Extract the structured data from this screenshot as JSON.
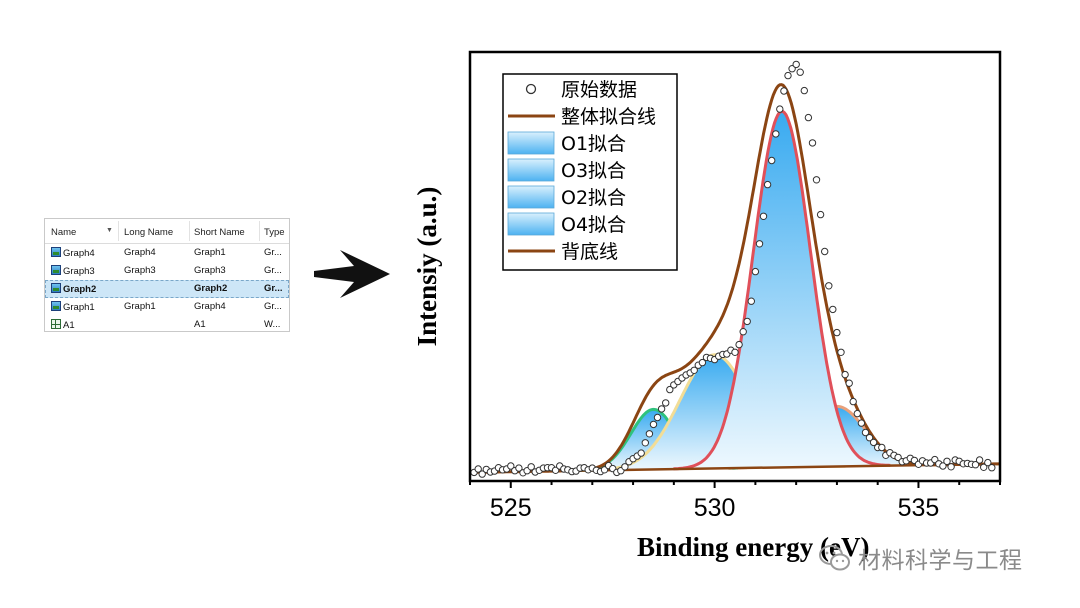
{
  "explorer": {
    "columns": [
      "Name",
      "Long Name",
      "Short Name",
      "Type"
    ],
    "rows": [
      {
        "name": "Graph4",
        "long": "Graph4",
        "short": "Graph1",
        "type": "Gr...",
        "icon": "graph-icon",
        "selected": false
      },
      {
        "name": "Graph3",
        "long": "Graph3",
        "short": "Graph3",
        "type": "Gr...",
        "icon": "graph-icon",
        "selected": false
      },
      {
        "name": "Graph2",
        "long": "",
        "short": "Graph2",
        "type": "Gr...",
        "icon": "graph-icon",
        "selected": true
      },
      {
        "name": "Graph1",
        "long": "Graph1",
        "short": "Graph4",
        "type": "Gr...",
        "icon": "graph-icon",
        "selected": false
      },
      {
        "name": "A1",
        "long": "",
        "short": "A1",
        "type": "W...",
        "icon": "workbook-icon",
        "selected": false
      }
    ]
  },
  "chart_data": {
    "type": "line",
    "xlabel": "Binding energy (eV)",
    "ylabel": "Intensiy (a.u.)",
    "xlim": [
      524,
      537
    ],
    "ylim": [
      0,
      1
    ],
    "xticks": [
      525,
      530,
      535
    ],
    "xtick_labels": [
      "525",
      "530",
      "535"
    ],
    "grid": false,
    "legend_position": "top-left",
    "legend": [
      {
        "label": "原始数据",
        "symbol": "circle"
      },
      {
        "label": "整体拟合线",
        "symbol": "line",
        "color": "#8b4513"
      },
      {
        "label": "O1拟合",
        "symbol": "fill"
      },
      {
        "label": "O3拟合",
        "symbol": "fill"
      },
      {
        "label": "O2拟合",
        "symbol": "fill"
      },
      {
        "label": "O4拟合",
        "symbol": "fill"
      },
      {
        "label": "背底线",
        "symbol": "line",
        "color": "#8b4513"
      }
    ],
    "background": {
      "name": "背底线",
      "color": "#8b4513",
      "x": [
        524,
        537
      ],
      "y": [
        0.02,
        0.04
      ]
    },
    "peaks": [
      {
        "name": "O1拟合",
        "center": 528.5,
        "sigma": 0.55,
        "height": 0.14,
        "edge_color": "#2fc27d"
      },
      {
        "name": "O2拟合",
        "center": 530.0,
        "sigma": 0.85,
        "height": 0.265,
        "edge_color": "#f2dd96"
      },
      {
        "name": "O3拟合",
        "center": 531.65,
        "sigma": 0.7,
        "height": 0.83,
        "edge_color": "#e0505a"
      },
      {
        "name": "O4拟合",
        "center": 533.0,
        "sigma": 0.7,
        "height": 0.14,
        "edge_color": "#e9a07a"
      }
    ],
    "fit_color": "#8b4513",
    "raw_data_start": 524.1,
    "raw_data_step": 0.1,
    "raw_data_y": [
      0.02,
      0.028,
      0.016,
      0.027,
      0.021,
      0.023,
      0.031,
      0.026,
      0.028,
      0.035,
      0.024,
      0.03,
      0.019,
      0.024,
      0.033,
      0.021,
      0.025,
      0.03,
      0.031,
      0.031,
      0.025,
      0.035,
      0.028,
      0.026,
      0.022,
      0.023,
      0.03,
      0.031,
      0.026,
      0.03,
      0.025,
      0.022,
      0.026,
      0.036,
      0.029,
      0.02,
      0.024,
      0.033,
      0.045,
      0.052,
      0.058,
      0.065,
      0.089,
      0.11,
      0.132,
      0.148,
      0.168,
      0.182,
      0.213,
      0.224,
      0.232,
      0.24,
      0.247,
      0.252,
      0.258,
      0.27,
      0.276,
      0.288,
      0.286,
      0.283,
      0.291,
      0.295,
      0.296,
      0.305,
      0.3,
      0.318,
      0.348,
      0.372,
      0.419,
      0.488,
      0.553,
      0.617,
      0.691,
      0.747,
      0.809,
      0.867,
      0.909,
      0.945,
      0.961,
      0.971,
      0.953,
      0.91,
      0.847,
      0.788,
      0.702,
      0.621,
      0.535,
      0.455,
      0.4,
      0.346,
      0.3,
      0.248,
      0.228,
      0.185,
      0.157,
      0.135,
      0.113,
      0.101,
      0.09,
      0.078,
      0.078,
      0.06,
      0.066,
      0.06,
      0.055,
      0.045,
      0.047,
      0.053,
      0.048,
      0.039,
      0.047,
      0.042,
      0.042,
      0.05,
      0.04,
      0.035,
      0.046,
      0.033,
      0.049,
      0.046,
      0.04,
      0.041,
      0.039,
      0.038,
      0.049,
      0.032,
      0.043,
      0.031
    ]
  },
  "watermark": {
    "icon": "wechat-icon",
    "text": "材料科学与工程"
  }
}
